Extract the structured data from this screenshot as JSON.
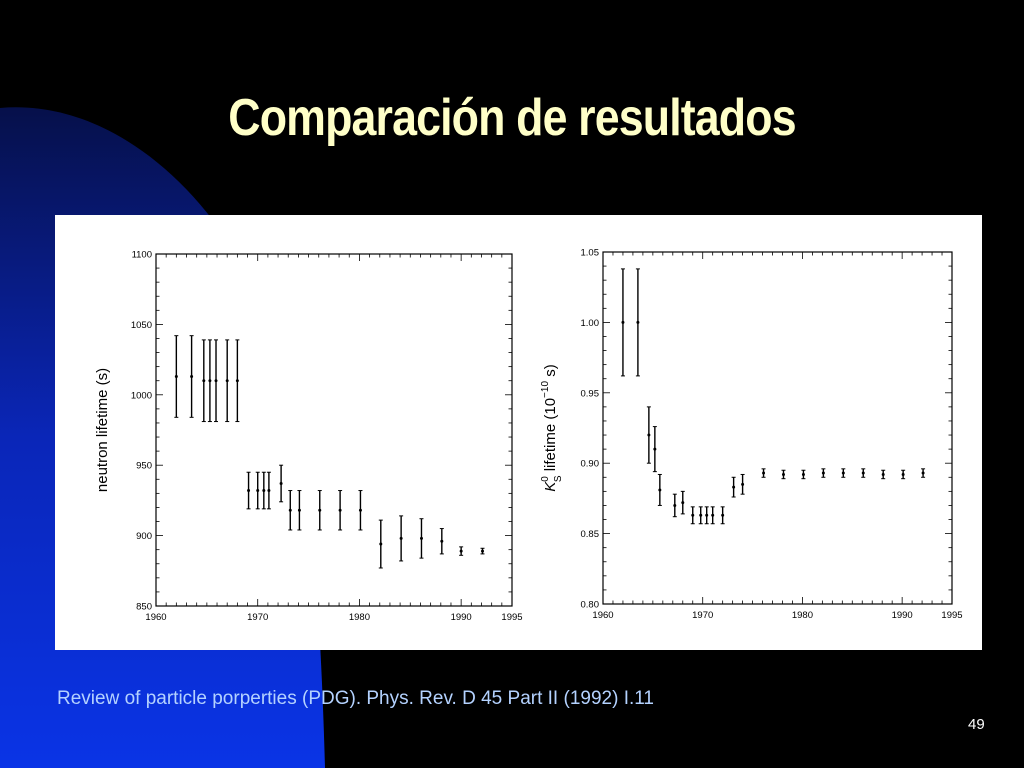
{
  "slide": {
    "title": "Comparación de resultados",
    "caption": "Review of particle porperties (PDG). Phys. Rev. D 45 Part II (1992) I.11",
    "page_number": "49"
  },
  "colors": {
    "title": "#ffffc8",
    "caption": "#b4d2ff",
    "background": "#000000",
    "accent_blue": "#0a2fd0"
  },
  "chart_data": [
    {
      "type": "scatter",
      "ylabel": "neutron lifetime (s)",
      "xlim": [
        1960,
        1995
      ],
      "ylim": [
        850,
        1100
      ],
      "x_ticks": [
        "1960",
        "1970",
        "1980",
        "1990",
        "1995"
      ],
      "y_ticks": [
        "850",
        "900",
        "950",
        "1000",
        "1050",
        "1100"
      ],
      "grid": false,
      "points": [
        {
          "x": 1962.0,
          "y": 1013,
          "err": 29
        },
        {
          "x": 1963.5,
          "y": 1013,
          "err": 29
        },
        {
          "x": 1964.7,
          "y": 1010,
          "err": 29
        },
        {
          "x": 1965.3,
          "y": 1010,
          "err": 29
        },
        {
          "x": 1965.9,
          "y": 1010,
          "err": 29
        },
        {
          "x": 1967.0,
          "y": 1010,
          "err": 29
        },
        {
          "x": 1968.0,
          "y": 1010,
          "err": 29
        },
        {
          "x": 1969.1,
          "y": 932,
          "err": 13
        },
        {
          "x": 1970.0,
          "y": 932,
          "err": 13
        },
        {
          "x": 1970.6,
          "y": 932,
          "err": 13
        },
        {
          "x": 1971.1,
          "y": 932,
          "err": 13
        },
        {
          "x": 1972.3,
          "y": 937,
          "err": 13
        },
        {
          "x": 1973.2,
          "y": 918,
          "err": 14
        },
        {
          "x": 1974.1,
          "y": 918,
          "err": 14
        },
        {
          "x": 1976.1,
          "y": 918,
          "err": 14
        },
        {
          "x": 1978.1,
          "y": 918,
          "err": 14
        },
        {
          "x": 1980.1,
          "y": 918,
          "err": 14
        },
        {
          "x": 1982.1,
          "y": 894,
          "err": 17
        },
        {
          "x": 1984.1,
          "y": 898,
          "err": 16
        },
        {
          "x": 1986.1,
          "y": 898,
          "err": 14
        },
        {
          "x": 1988.1,
          "y": 896,
          "err": 9
        },
        {
          "x": 1990.0,
          "y": 889,
          "err": 3
        },
        {
          "x": 1992.1,
          "y": 889,
          "err": 2
        }
      ]
    },
    {
      "type": "scatter",
      "ylabel": "K⁰ lifetime (10⁻¹⁰ s)",
      "ylabel_parts": {
        "symbol": "K",
        "superscript": "0",
        "subscript": "S",
        "rest": " lifetime (10",
        "exp": "−10",
        "unit": " s)"
      },
      "xlim": [
        1960,
        1995
      ],
      "ylim": [
        0.8,
        1.05
      ],
      "x_ticks": [
        "1960",
        "1970",
        "1980",
        "1990",
        "1995"
      ],
      "y_ticks": [
        "0.80",
        "0.85",
        "0.90",
        "0.95",
        "1.00",
        "1.05"
      ],
      "grid": false,
      "points": [
        {
          "x": 1962.0,
          "y": 1.0,
          "err": 0.038
        },
        {
          "x": 1963.5,
          "y": 1.0,
          "err": 0.038
        },
        {
          "x": 1964.6,
          "y": 0.92,
          "err": 0.02
        },
        {
          "x": 1965.2,
          "y": 0.91,
          "err": 0.016
        },
        {
          "x": 1965.7,
          "y": 0.881,
          "err": 0.011
        },
        {
          "x": 1967.2,
          "y": 0.87,
          "err": 0.008
        },
        {
          "x": 1968.0,
          "y": 0.872,
          "err": 0.008
        },
        {
          "x": 1969.0,
          "y": 0.863,
          "err": 0.006
        },
        {
          "x": 1969.8,
          "y": 0.863,
          "err": 0.006
        },
        {
          "x": 1970.4,
          "y": 0.863,
          "err": 0.006
        },
        {
          "x": 1971.0,
          "y": 0.863,
          "err": 0.006
        },
        {
          "x": 1972.0,
          "y": 0.863,
          "err": 0.006
        },
        {
          "x": 1973.1,
          "y": 0.883,
          "err": 0.007
        },
        {
          "x": 1974.0,
          "y": 0.885,
          "err": 0.007
        },
        {
          "x": 1976.1,
          "y": 0.893,
          "err": 0.003
        },
        {
          "x": 1978.1,
          "y": 0.892,
          "err": 0.003
        },
        {
          "x": 1980.1,
          "y": 0.892,
          "err": 0.003
        },
        {
          "x": 1982.1,
          "y": 0.893,
          "err": 0.003
        },
        {
          "x": 1984.1,
          "y": 0.893,
          "err": 0.003
        },
        {
          "x": 1986.1,
          "y": 0.893,
          "err": 0.003
        },
        {
          "x": 1988.1,
          "y": 0.892,
          "err": 0.003
        },
        {
          "x": 1990.1,
          "y": 0.892,
          "err": 0.003
        },
        {
          "x": 1992.1,
          "y": 0.893,
          "err": 0.003
        }
      ]
    }
  ]
}
